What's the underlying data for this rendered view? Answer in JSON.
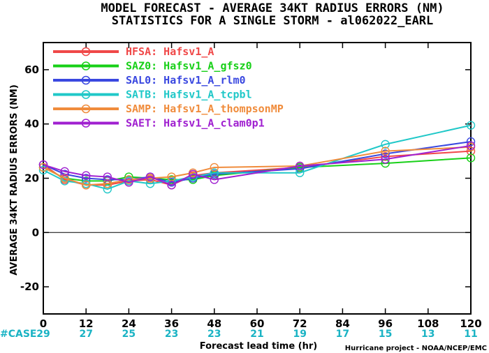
{
  "chart_data": {
    "type": "line",
    "title": "MODEL FORECAST - AVERAGE 34KT RADIUS ERRORS (NM)",
    "subtitle": "STATISTICS FOR A SINGLE STORM - al062022_EARL",
    "xlabel": "Forecast lead time (hr)",
    "ylabel": "AVERAGE 34KT RADIUS ERRORS (NM)",
    "xlim": [
      0,
      120
    ],
    "ylim": [
      -30,
      70
    ],
    "x_ticks": [
      "0",
      "12",
      "24",
      "36",
      "48",
      "60",
      "72",
      "84",
      "96",
      "108",
      "120"
    ],
    "y_ticks": [
      "-20",
      "0",
      "20",
      "40",
      "60"
    ],
    "case_label": "#CASE",
    "case_counts": [
      "29",
      "27",
      "25",
      "23",
      "23",
      "21",
      "19",
      "17",
      "15",
      "13",
      "11"
    ],
    "credit": "Hurricane project - NOAA/NCEP/EMC",
    "series": [
      {
        "name": "HFSA:  Hafsv1_A",
        "color": "#f04848",
        "x": [
          0,
          6,
          12,
          18,
          24,
          30,
          36,
          42,
          48,
          72,
          96,
          120
        ],
        "y": [
          25,
          19.5,
          17.5,
          17.5,
          19,
          19.5,
          17.5,
          21,
          22,
          24,
          28,
          30
        ]
      },
      {
        "name": "SAZ0:  Hafsv1_A_gfsz0",
        "color": "#18d018",
        "x": [
          0,
          6,
          12,
          18,
          24,
          30,
          36,
          42,
          48,
          72,
          96,
          120
        ],
        "y": [
          24,
          20,
          19,
          19,
          20.5,
          20,
          19.5,
          19.5,
          21,
          24,
          25.5,
          27.5
        ]
      },
      {
        "name": "SAL0:  Hafsv1_A_rlm0",
        "color": "#3a48e0",
        "x": [
          0,
          6,
          12,
          18,
          24,
          30,
          36,
          42,
          48,
          72,
          96,
          120
        ],
        "y": [
          25,
          21.5,
          20,
          19.5,
          19.5,
          20.5,
          18.5,
          20,
          21.5,
          23.5,
          29,
          33.5
        ]
      },
      {
        "name": "SATB:  Hafsv1_A_tcpbl",
        "color": "#20c8c8",
        "x": [
          0,
          6,
          12,
          18,
          24,
          30,
          36,
          42,
          48,
          72,
          96,
          120
        ],
        "y": [
          23,
          19,
          18,
          16,
          19,
          18,
          19,
          20.5,
          22,
          22,
          32.5,
          39.5
        ]
      },
      {
        "name": "SAMP:  Hafsv1_A_thompsonMP",
        "color": "#f08c3c",
        "x": [
          0,
          6,
          12,
          18,
          24,
          30,
          36,
          42,
          48,
          72,
          96,
          120
        ],
        "y": [
          24,
          20,
          17.5,
          18,
          19.5,
          20,
          20.5,
          22,
          24,
          24.5,
          30,
          31.5
        ]
      },
      {
        "name": "SAET:  Hafsv1_A_clam0p1",
        "color": "#a020d0",
        "x": [
          0,
          6,
          12,
          18,
          24,
          30,
          36,
          42,
          48,
          72,
          96,
          120
        ],
        "y": [
          25,
          22.5,
          21,
          20.5,
          18.5,
          20.5,
          17.5,
          21.5,
          19.5,
          24.5,
          27,
          32
        ]
      }
    ]
  }
}
